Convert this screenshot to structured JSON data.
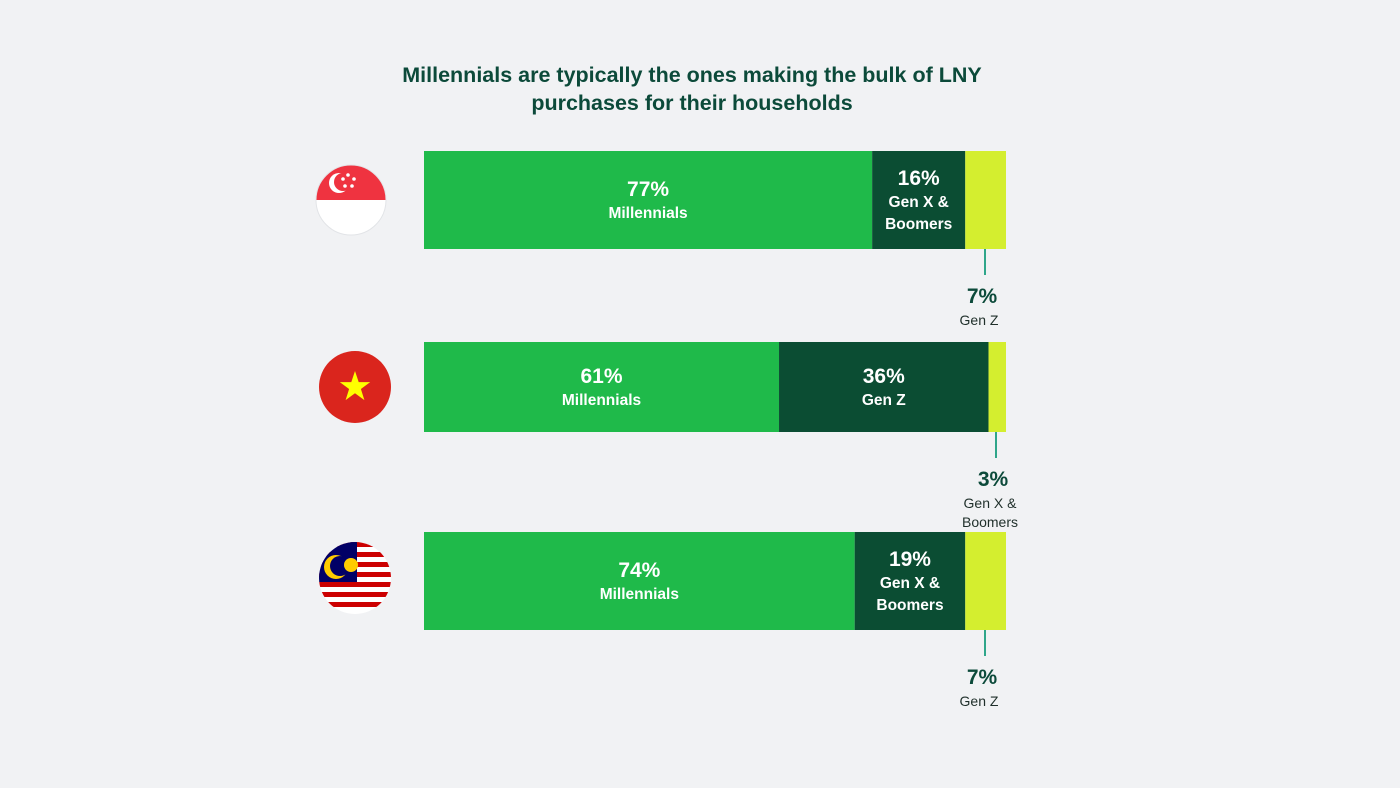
{
  "title": {
    "line1": "Millennials are typically the ones making the bulk of LNY",
    "line2": "purchases for their households"
  },
  "colors": {
    "background": "#f1f2f4",
    "title": "#0c4a3a",
    "millennials": "#1fba4a",
    "dark_segment": "#0b4d33",
    "light_segment": "#d4ee2f",
    "callout_line": "#2fa68a"
  },
  "chart_data": {
    "type": "bar",
    "orientation": "horizontal",
    "stacked": true,
    "unit": "%",
    "xlim": [
      0,
      100
    ],
    "title": "Millennials are typically the ones making the bulk of LNY purchases for their households",
    "rows": [
      {
        "country_icon": "singapore-flag-icon",
        "segments": [
          {
            "name": "Millennials",
            "lines": [
              "Millennials"
            ],
            "value": 77,
            "label": "77%",
            "color": "#1fba4a"
          },
          {
            "name": "Gen X & Boomers",
            "lines": [
              "Gen X &",
              "Boomers"
            ],
            "value": 16,
            "label": "16%",
            "color": "#0b4d33"
          },
          {
            "name": "Gen Z",
            "lines": [
              "Gen Z"
            ],
            "value": 7,
            "label": "7%",
            "color": "#d4ee2f",
            "callout": true
          }
        ]
      },
      {
        "country_icon": "vietnam-flag-icon",
        "segments": [
          {
            "name": "Millennials",
            "lines": [
              "Millennials"
            ],
            "value": 61,
            "label": "61%",
            "color": "#1fba4a"
          },
          {
            "name": "Gen Z",
            "lines": [
              "Gen Z"
            ],
            "value": 36,
            "label": "36%",
            "color": "#0b4d33"
          },
          {
            "name": "Gen X & Boomers",
            "lines": [
              "Gen X &",
              "Boomers"
            ],
            "value": 3,
            "label": "3%",
            "color": "#d4ee2f",
            "callout": true
          }
        ]
      },
      {
        "country_icon": "malaysia-flag-icon",
        "segments": [
          {
            "name": "Millennials",
            "lines": [
              "Millennials"
            ],
            "value": 74,
            "label": "74%",
            "color": "#1fba4a"
          },
          {
            "name": "Gen X & Boomers",
            "lines": [
              "Gen X &",
              "Boomers"
            ],
            "value": 19,
            "label": "19%",
            "color": "#0b4d33"
          },
          {
            "name": "Gen Z",
            "lines": [
              "Gen Z"
            ],
            "value": 7,
            "label": "7%",
            "color": "#d4ee2f",
            "callout": true
          }
        ]
      }
    ]
  }
}
